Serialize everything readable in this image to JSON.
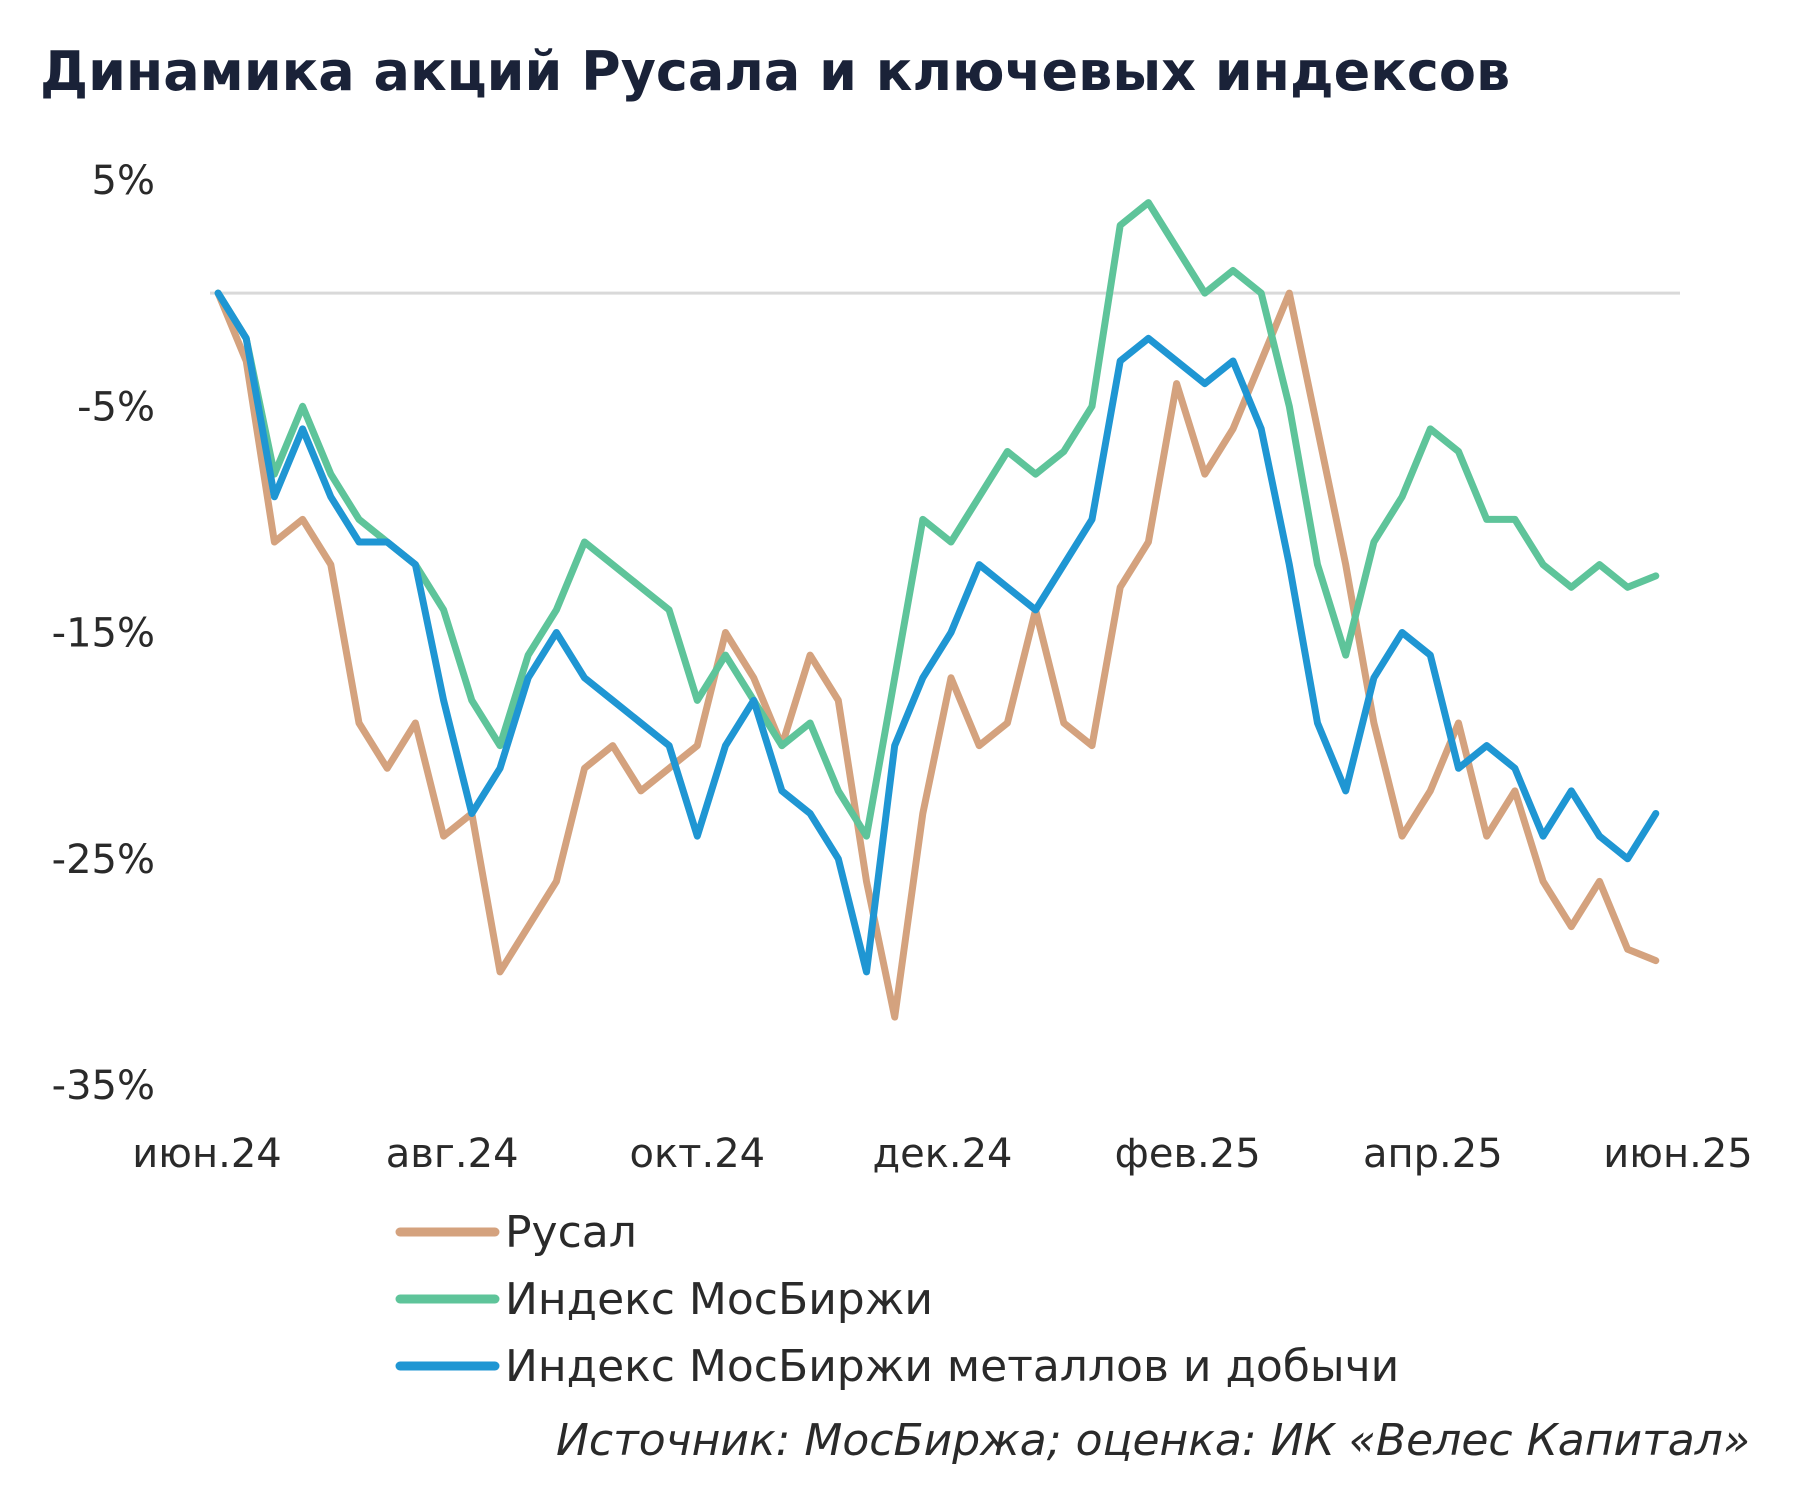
{
  "chart_data": {
    "type": "line",
    "title": "Динамика  акций  Русала  и  ключевых  индексов",
    "source": "Источник: МосБиржа; оценка: ИК «Велес Капитал»",
    "y_ticks": [
      "5%",
      "-5%",
      "-15%",
      "-25%",
      "-35%"
    ],
    "y_tick_values": [
      5,
      -5,
      -15,
      -25,
      -35
    ],
    "ylim": [
      -35,
      5
    ],
    "x_ticks": [
      "июн.24",
      "авг.24",
      "окт.24",
      "дек.24",
      "фев.25",
      "апр.25",
      "июн.25"
    ],
    "x_range": [
      "2024-06-01",
      "2025-06-01"
    ],
    "x": [
      "2024-06-03",
      "2024-06-10",
      "2024-06-17",
      "2024-06-24",
      "2024-07-01",
      "2024-07-08",
      "2024-07-15",
      "2024-07-22",
      "2024-07-29",
      "2024-08-05",
      "2024-08-12",
      "2024-08-19",
      "2024-08-26",
      "2024-09-02",
      "2024-09-09",
      "2024-09-16",
      "2024-09-23",
      "2024-09-30",
      "2024-10-07",
      "2024-10-14",
      "2024-10-21",
      "2024-10-28",
      "2024-11-04",
      "2024-11-11",
      "2024-11-18",
      "2024-11-25",
      "2024-12-02",
      "2024-12-09",
      "2024-12-16",
      "2024-12-23",
      "2024-12-30",
      "2025-01-06",
      "2025-01-13",
      "2025-01-20",
      "2025-01-27",
      "2025-02-03",
      "2025-02-10",
      "2025-02-17",
      "2025-02-24",
      "2025-03-03",
      "2025-03-10",
      "2025-03-17",
      "2025-03-24",
      "2025-03-31",
      "2025-04-07",
      "2025-04-14",
      "2025-04-21",
      "2025-04-28",
      "2025-05-05",
      "2025-05-12",
      "2025-05-19",
      "2025-05-26"
    ],
    "series": [
      {
        "name": "Русал",
        "color": "#d4a27e",
        "values": [
          0,
          -3,
          -11,
          -10,
          -12,
          -19,
          -21,
          -19,
          -24,
          -23,
          -30,
          -28,
          -26,
          -21,
          -20,
          -22,
          -21,
          -20,
          -15,
          -17,
          -20,
          -16,
          -18,
          -26,
          -32,
          -23,
          -17,
          -20,
          -19,
          -14,
          -19,
          -20,
          -13,
          -11,
          -4,
          -8,
          -6,
          -3,
          0,
          -6,
          -12,
          -19,
          -24,
          -22,
          -19,
          -24,
          -22,
          -26,
          -28,
          -26,
          -29,
          -29.5
        ]
      },
      {
        "name": "Индекс МосБиржи",
        "color": "#5ec49a",
        "values": [
          0,
          -2,
          -8,
          -5,
          -8,
          -10,
          -11,
          -12,
          -14,
          -18,
          -20,
          -16,
          -14,
          -11,
          -12,
          -13,
          -14,
          -18,
          -16,
          -18,
          -20,
          -19,
          -22,
          -24,
          -17,
          -10,
          -11,
          -9,
          -7,
          -8,
          -7,
          -5,
          3,
          4,
          2,
          0,
          1,
          0,
          -5,
          -12,
          -16,
          -11,
          -9,
          -6,
          -7,
          -10,
          -10,
          -12,
          -13,
          -12,
          -13,
          -12.5
        ]
      },
      {
        "name": "Индекс МосБиржи металлов и добычи",
        "color": "#1f96d3",
        "values": [
          0,
          -2,
          -9,
          -6,
          -9,
          -11,
          -11,
          -12,
          -18,
          -23,
          -21,
          -17,
          -15,
          -17,
          -18,
          -19,
          -20,
          -24,
          -20,
          -18,
          -22,
          -23,
          -25,
          -30,
          -20,
          -17,
          -15,
          -12,
          -13,
          -14,
          -12,
          -10,
          -3,
          -2,
          -3,
          -4,
          -3,
          -6,
          -12,
          -19,
          -22,
          -17,
          -15,
          -16,
          -21,
          -20,
          -21,
          -24,
          -22,
          -24,
          -25,
          -23
        ]
      }
    ]
  }
}
